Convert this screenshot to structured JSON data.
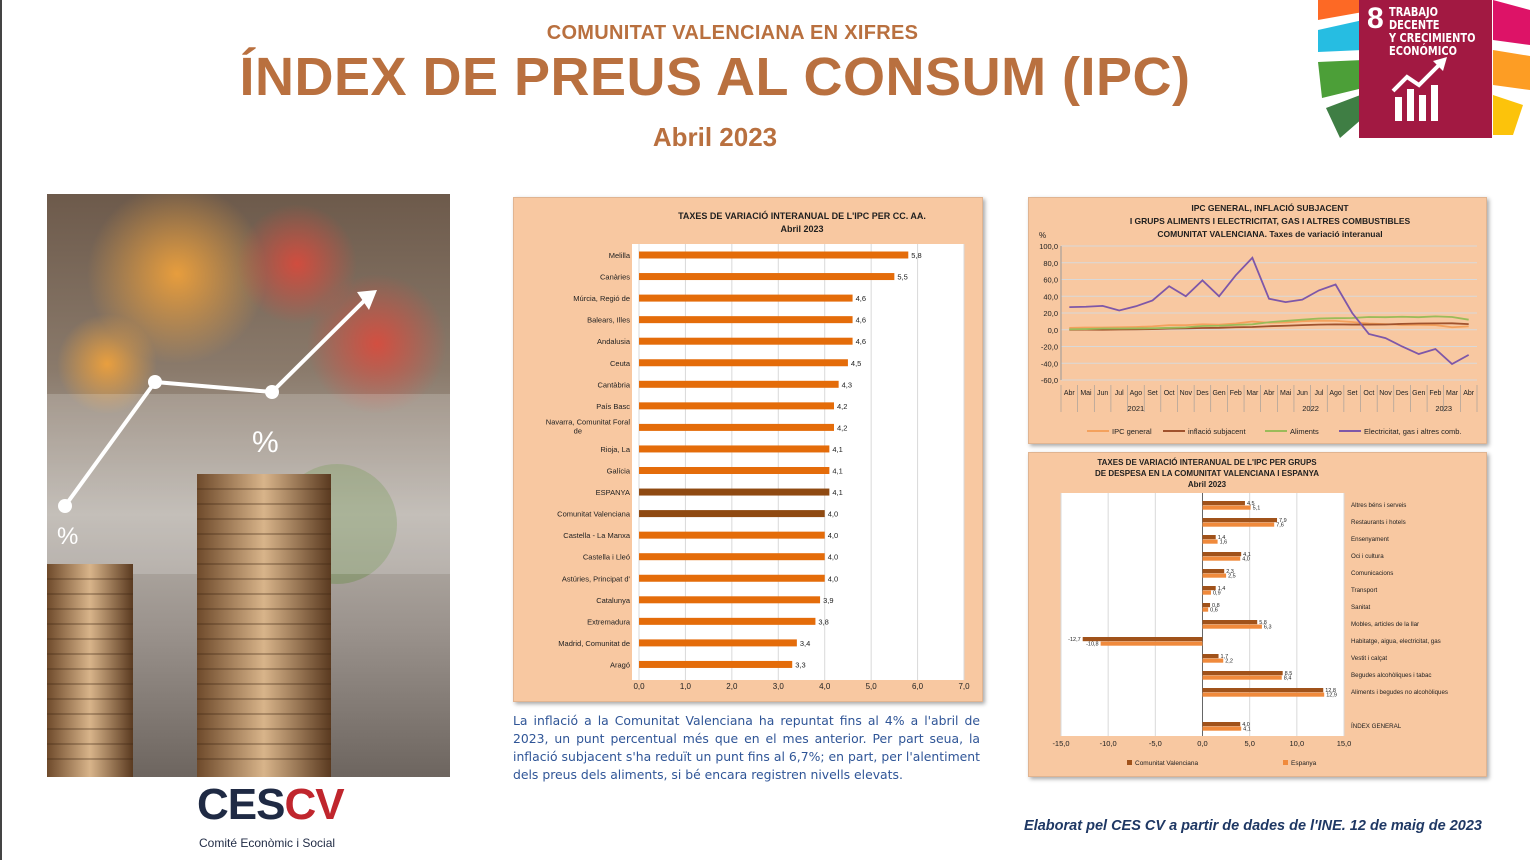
{
  "header": {
    "kicker": "COMUNITAT VALENCIANA EN XIFRES",
    "title": "ÍNDEX DE PREUS AL CONSUM (IPC)",
    "subtitle": "Abril 2023"
  },
  "sdg_badge": {
    "number": "8",
    "text_lines": [
      "TRABAJO DECENTE",
      "Y CRECIMIENTO",
      "ECONÓMICO"
    ],
    "color": "#a21942",
    "icon": "growth-chart-icon"
  },
  "photo": {
    "percent_labels": [
      "%",
      "%"
    ],
    "icon": "coins-growth-photo"
  },
  "caption": "La inflació a la Comunitat Valenciana ha repuntat fins al 4% a l'abril de 2023, un punt percentual més que en el mes anterior. Per part seua, la inflació subjacent s'ha reduït un punt fins al 6,7%; en part, per l'alentiment dels preus dels aliments, si bé encara registren nivells elevats.",
  "logo": {
    "ces": "CES",
    "cv": "CV",
    "sub": "Comité Econòmic i Social"
  },
  "source": "Elaborat pel CES CV a partir de dades de l'INE. 12 de maig de 2023",
  "chart_data": [
    {
      "type": "bar",
      "orientation": "horizontal",
      "title": "TAXES DE VARIACIÓ INTERANUAL DE L'IPC PER CC. AA.",
      "subtitle": "Abril 2023",
      "categories": [
        "Melilla",
        "Canàries",
        "Múrcia, Regió de",
        "Balears, Illes",
        "Andalusia",
        "Ceuta",
        "Cantàbria",
        "País Basc",
        "Navarra, Comunitat Foral de",
        "Rioja, La",
        "Galícia",
        "ESPANYA",
        "Comunitat Valenciana",
        "Castella - La Manxa",
        "Castella i Lleó",
        "Astúries, Principat d'",
        "Catalunya",
        "Extremadura",
        "Madrid, Comunitat de",
        "Aragó"
      ],
      "category_lines": [
        [
          "Melilla"
        ],
        [
          "Canàries"
        ],
        [
          "Múrcia, Regió de"
        ],
        [
          "Balears, Illes"
        ],
        [
          "Andalusia"
        ],
        [
          "Ceuta"
        ],
        [
          "Cantàbria"
        ],
        [
          "País Basc"
        ],
        [
          "Navarra, Comunitat Foral",
          "de"
        ],
        [
          "Rioja, La"
        ],
        [
          "Galícia"
        ],
        [
          "ESPANYA"
        ],
        [
          "Comunitat Valenciana"
        ],
        [
          "Castella - La Manxa"
        ],
        [
          "Castella i Lleó"
        ],
        [
          "Astúries, Principat d'"
        ],
        [
          "Catalunya"
        ],
        [
          "Extremadura"
        ],
        [
          "Madrid, Comunitat de"
        ],
        [
          "Aragó"
        ]
      ],
      "values": [
        5.8,
        5.5,
        4.6,
        4.6,
        4.6,
        4.5,
        4.3,
        4.2,
        4.2,
        4.1,
        4.1,
        4.1,
        4.0,
        4.0,
        4.0,
        4.0,
        3.9,
        3.8,
        3.4,
        3.3
      ],
      "value_labels": [
        "5,8",
        "5,5",
        "4,6",
        "4,6",
        "4,6",
        "4,5",
        "4,3",
        "4,2",
        "4,2",
        "4,1",
        "4,1",
        "4,1",
        "4,0",
        "4,0",
        "4,0",
        "4,0",
        "3,9",
        "3,8",
        "3,4",
        "3,3"
      ],
      "highlight": {
        "ESPANYA": "#8f4a12",
        "Comunitat Valenciana": "#8f4a12"
      },
      "bar_color": "#e46c0a",
      "xlim": [
        0,
        7
      ],
      "x_ticks": [
        "0,0",
        "1,0",
        "2,0",
        "3,0",
        "4,0",
        "5,0",
        "6,0",
        "7,0"
      ],
      "grid": true
    },
    {
      "type": "line",
      "title_lines": [
        "IPC GENERAL, INFLACIÓ SUBJACENT",
        "I GRUPS ALIMENTS I ELECTRICITAT, GAS I ALTRES COMBUSTIBLES",
        "COMUNITAT VALENCIANA. Taxes de variació interanual"
      ],
      "ylabel": "%",
      "ylim": [
        -60,
        100
      ],
      "y_ticks": [
        "100,0",
        "80,0",
        "60,0",
        "40,0",
        "20,0",
        "0,0",
        "-20,0",
        "-40,0",
        "-60,0"
      ],
      "x": [
        "Abr",
        "Mai",
        "Jun",
        "Jul",
        "Ago",
        "Set",
        "Oct",
        "Nov",
        "Des",
        "Gen",
        "Feb",
        "Mar",
        "Abr",
        "Mai",
        "Jun",
        "Jul",
        "Ago",
        "Set",
        "Oct",
        "Nov",
        "Des",
        "Gen",
        "Feb",
        "Mar",
        "Abr"
      ],
      "year_labels": [
        {
          "label": "2021",
          "start": 0,
          "end": 8
        },
        {
          "label": "2022",
          "start": 9,
          "end": 20
        },
        {
          "label": "2023",
          "start": 21,
          "end": 24
        }
      ],
      "series": [
        {
          "name": "IPC general",
          "color": "#f4a15d",
          "values": [
            2.2,
            2.7,
            2.7,
            2.9,
            3.3,
            4.0,
            5.5,
            5.5,
            6.6,
            6.1,
            7.5,
            9.8,
            8.4,
            8.7,
            10.2,
            10.8,
            10.6,
            9.3,
            7.5,
            6.7,
            5.7,
            5.8,
            5.6,
            3.0,
            4.0
          ]
        },
        {
          "name": "inflació subjacent",
          "color": "#a0522d",
          "values": [
            0.0,
            0.2,
            0.0,
            0.4,
            0.5,
            0.8,
            1.3,
            1.6,
            2.1,
            2.3,
            3.0,
            3.3,
            4.2,
            4.8,
            5.5,
            6.1,
            6.4,
            6.2,
            6.2,
            6.3,
            7.0,
            7.5,
            7.6,
            7.7,
            6.7
          ]
        },
        {
          "name": "Aliments",
          "color": "#9bbb59",
          "values": [
            0.5,
            0.8,
            1.5,
            1.5,
            1.6,
            1.8,
            2.3,
            2.8,
            4.5,
            4.8,
            5.8,
            6.5,
            9.0,
            10.5,
            12.0,
            13.4,
            13.8,
            14.0,
            15.2,
            15.0,
            15.5,
            15.0,
            16.0,
            15.2,
            12.0
          ]
        },
        {
          "name": "Electricitat, gas i altres comb.",
          "color": "#7e57a8",
          "values": [
            27.0,
            27.5,
            28.5,
            23.0,
            28.0,
            35.0,
            52.0,
            40.0,
            59.0,
            40.0,
            65.0,
            86.0,
            37.0,
            33.0,
            36.0,
            47.0,
            54.0,
            20.0,
            -5.0,
            -10.0,
            -20.0,
            -29.0,
            -23.0,
            -41.0,
            -30.0
          ]
        }
      ],
      "legend_position": "bottom",
      "grid": true
    },
    {
      "type": "bar",
      "orientation": "horizontal",
      "title_lines": [
        "TAXES DE VARIACIÓ INTERANUAL DE L'IPC PER GRUPS",
        "DE DESPESA EN LA COMUNITAT VALENCIANA I ESPANYA",
        "Abril 2023"
      ],
      "categories": [
        "Altres béns i serveis",
        "Restaurants i hotels",
        "Ensenyament",
        "Oci i cultura",
        "Comunicacions",
        "Transport",
        "Sanitat",
        "Mobles, articles de la llar",
        "Habitatge, aigua, electricitat, gas",
        "Vestit i calçat",
        "Begudes alcohòliques i tabac",
        "Aliments i begudes no alcohòliques",
        "ÍNDEX GENERAL"
      ],
      "category_slots": [
        0,
        1,
        2,
        3,
        4,
        5,
        6,
        7,
        8,
        9,
        10,
        11,
        13
      ],
      "series": [
        {
          "name": "Comunitat Valenciana",
          "color": "#a0521a",
          "values": [
            4.5,
            7.9,
            1.4,
            4.1,
            2.3,
            1.4,
            0.8,
            5.8,
            -12.7,
            1.7,
            8.5,
            12.8,
            4.0
          ],
          "value_labels": [
            "4,5",
            "7,9",
            "1,4",
            "4,1",
            "2,3",
            "1,4",
            "0,8",
            "5,8",
            "-12,7",
            "1,7",
            "8,5",
            "12,8",
            "4,0"
          ]
        },
        {
          "name": "Espanya",
          "color": "#f08a3c",
          "values": [
            5.1,
            7.6,
            1.6,
            4.0,
            2.5,
            0.9,
            0.6,
            6.3,
            -10.8,
            2.2,
            8.4,
            12.9,
            4.1
          ],
          "value_labels": [
            "5,1",
            "7,6",
            "1,6",
            "4,0",
            "2,5",
            "0,9",
            "0,6",
            "6,3",
            "-10,8",
            "2,2",
            "8,4",
            "12,9",
            "4,1"
          ]
        }
      ],
      "xlim": [
        -15,
        15
      ],
      "x_ticks": [
        "-15,0",
        "-10,0",
        "-5,0",
        "0,0",
        "5,0",
        "10,0",
        "15,0"
      ],
      "legend_position": "bottom",
      "grid": true
    }
  ]
}
